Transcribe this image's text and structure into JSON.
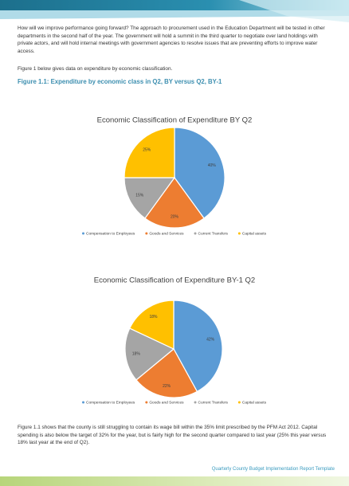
{
  "document": {
    "paragraphs": [
      "How will we improve performance going forward?  The approach to procurement used in the Education Department will be tested in other departments in the second half of the year.  The government will hold a summit in the third quarter to negotiate over land holdings with private actors, and will hold internal meetings with government agencies to resolve issues that are preventing efforts to improve water access.",
      "Figure 1 below gives data on expenditure by economic classification."
    ],
    "figure_heading": "Figure 1.1: Expenditure by economic class in Q2, BY versus Q2, BY-1",
    "closing_paragraph": "Figure 1.1 shows that the county is still struggling to contain its wage bill within the 35% limit prescribed by the PFM Act 2012.  Capital spending is also below the target of 32% for the year, but is fairly high for the second quarter compared to last year (25% this year versus 18% last year at the end of Q2).",
    "footer": "Quarterly County Budget Implementation Report Template"
  },
  "chart_data": [
    {
      "type": "pie",
      "title": "Economic Classification of Expenditure BY Q2",
      "categories": [
        "Compensation to Employees",
        "Goods and Services",
        "Current Transfers",
        "Capital assets"
      ],
      "values": [
        40,
        20,
        15,
        25
      ],
      "value_labels": [
        "40%",
        "20%",
        "15%",
        "25%"
      ],
      "colors": [
        "#5b9bd5",
        "#ed7d31",
        "#a5a5a5",
        "#ffc000"
      ],
      "legend": "bottom"
    },
    {
      "type": "pie",
      "title": "Economic Classification of Expenditure BY-1 Q2",
      "categories": [
        "Compensation to Employees",
        "Goods and Services",
        "Current Transfers",
        "Capital assets"
      ],
      "values": [
        42,
        22,
        18,
        18
      ],
      "value_labels": [
        "42%",
        "22%",
        "18%",
        "18%"
      ],
      "colors": [
        "#5b9bd5",
        "#ed7d31",
        "#a5a5a5",
        "#ffc000"
      ],
      "legend": "bottom"
    }
  ]
}
